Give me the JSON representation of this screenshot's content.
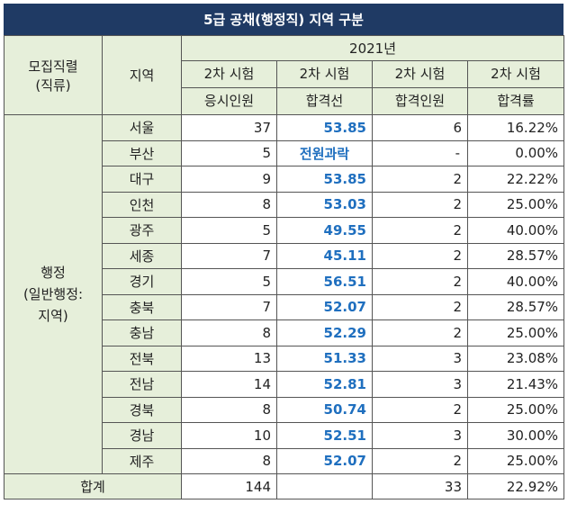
{
  "title": "5급 공채(행정직) 지역 구분",
  "headers": {
    "recruitment_unit_line1": "모집직렬",
    "recruitment_unit_line2": "(직류)",
    "region": "지역",
    "year": "2021년",
    "col1_line1": "2차 시험",
    "col1_line2": "응시인원",
    "col2_line1": "2차 시험",
    "col2_line2": "합격선",
    "col3_line1": "2차 시험",
    "col3_line2": "합격인원",
    "col4_line1": "2차 시험",
    "col4_line2": "합격률"
  },
  "section": {
    "line1": "행정",
    "line2": "(일반행정:",
    "line3": "지역)"
  },
  "rows": [
    {
      "region": "서울",
      "applicants": "37",
      "cutoff": "53.85",
      "passed": "6",
      "rate": "16.22%"
    },
    {
      "region": "부산",
      "applicants": "5",
      "cutoff": "전원과락",
      "passed": "-",
      "rate": "0.00%"
    },
    {
      "region": "대구",
      "applicants": "9",
      "cutoff": "53.85",
      "passed": "2",
      "rate": "22.22%"
    },
    {
      "region": "인천",
      "applicants": "8",
      "cutoff": "53.03",
      "passed": "2",
      "rate": "25.00%"
    },
    {
      "region": "광주",
      "applicants": "5",
      "cutoff": "49.55",
      "passed": "2",
      "rate": "40.00%"
    },
    {
      "region": "세종",
      "applicants": "7",
      "cutoff": "45.11",
      "passed": "2",
      "rate": "28.57%"
    },
    {
      "region": "경기",
      "applicants": "5",
      "cutoff": "56.51",
      "passed": "2",
      "rate": "40.00%"
    },
    {
      "region": "충북",
      "applicants": "7",
      "cutoff": "52.07",
      "passed": "2",
      "rate": "28.57%"
    },
    {
      "region": "충남",
      "applicants": "8",
      "cutoff": "52.29",
      "passed": "2",
      "rate": "25.00%"
    },
    {
      "region": "전북",
      "applicants": "13",
      "cutoff": "51.33",
      "passed": "3",
      "rate": "23.08%"
    },
    {
      "region": "전남",
      "applicants": "14",
      "cutoff": "52.81",
      "passed": "3",
      "rate": "21.43%"
    },
    {
      "region": "경북",
      "applicants": "8",
      "cutoff": "50.74",
      "passed": "2",
      "rate": "25.00%"
    },
    {
      "region": "경남",
      "applicants": "10",
      "cutoff": "52.51",
      "passed": "3",
      "rate": "30.00%"
    },
    {
      "region": "제주",
      "applicants": "8",
      "cutoff": "52.07",
      "passed": "2",
      "rate": "25.00%"
    }
  ],
  "total": {
    "label": "합계",
    "applicants": "144",
    "cutoff": "",
    "passed": "33",
    "rate": "22.92%"
  },
  "colors": {
    "title_bg": "#1f3a64",
    "header_bg": "#e6efda",
    "score_text": "#1f6fbf"
  }
}
